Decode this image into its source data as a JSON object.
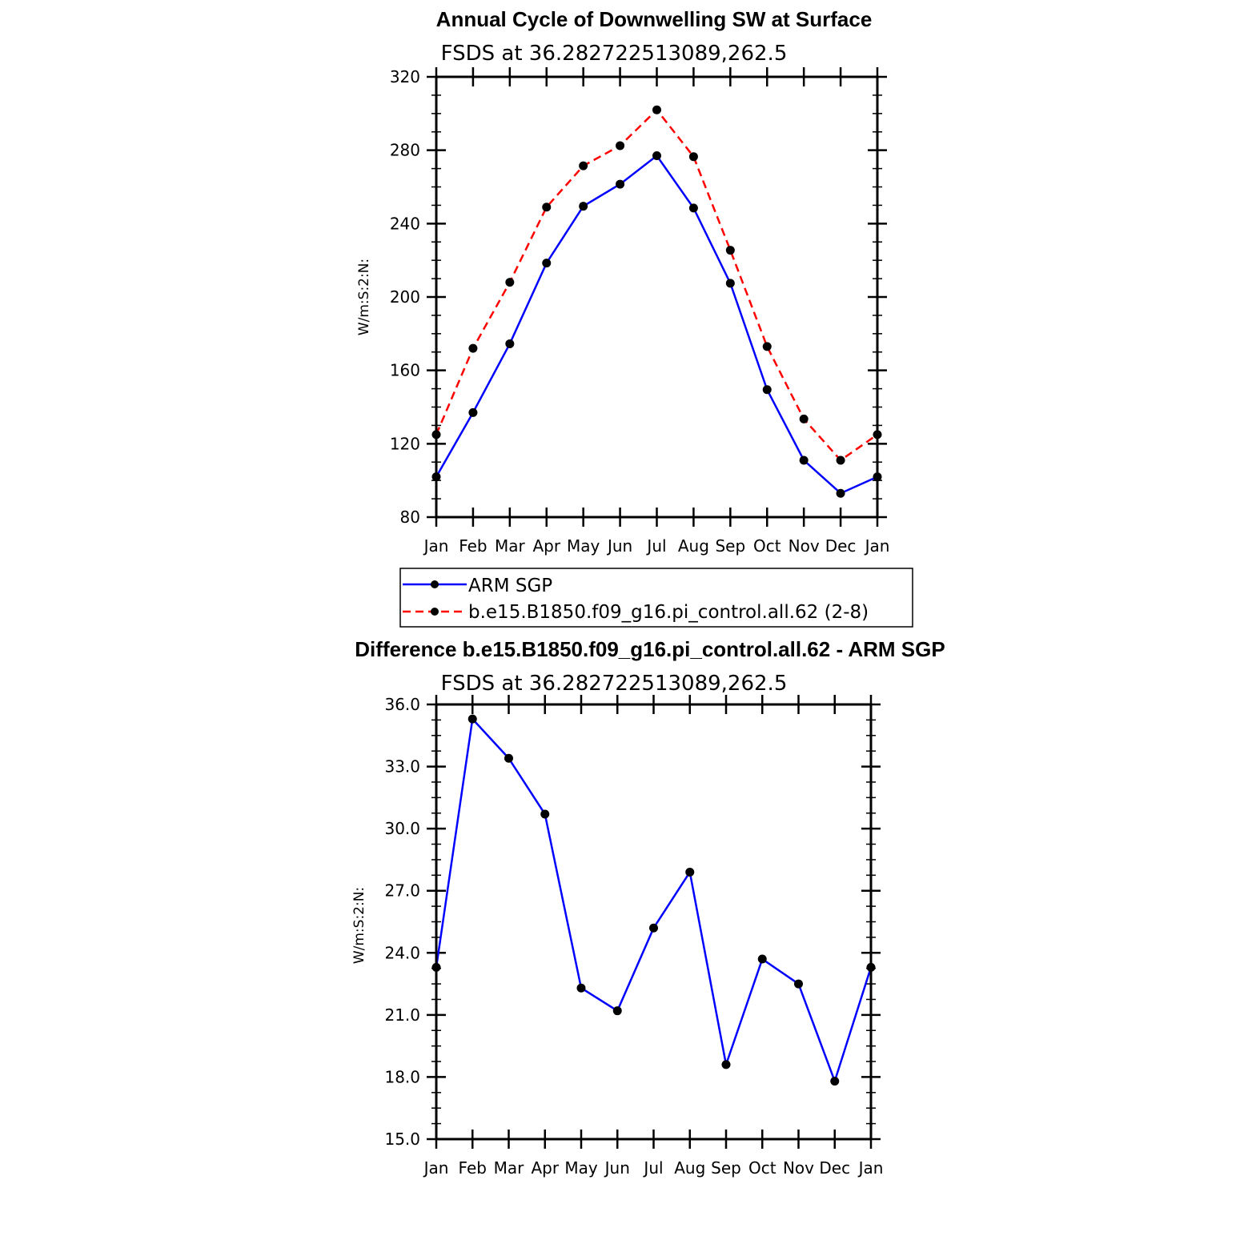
{
  "chart_data": [
    {
      "type": "line",
      "title": "Annual Cycle of Downwelling SW at Surface",
      "subtitle": "FSDS at 36.282722513089,262.5",
      "ylabel": "W/m:S:2:N:",
      "xlabel": "",
      "categories": [
        "Jan",
        "Feb",
        "Mar",
        "Apr",
        "May",
        "Jun",
        "Jul",
        "Aug",
        "Sep",
        "Oct",
        "Nov",
        "Dec",
        "Jan"
      ],
      "ylim": [
        80,
        320
      ],
      "yticks": [
        "80",
        "120",
        "160",
        "200",
        "240",
        "280",
        "320"
      ],
      "series": [
        {
          "name": "ARM SGP",
          "color": "#0000ff",
          "dash": "solid",
          "values": [
            102,
            137,
            174.5,
            218.5,
            249.5,
            261.5,
            277,
            248.5,
            207.5,
            149.5,
            111,
            93,
            102
          ]
        },
        {
          "name": "b.e15.B1850.f09_g16.pi_control.all.62 (2-8)",
          "color": "#ff0000",
          "dash": "dashed",
          "values": [
            125,
            172,
            208,
            249,
            271.5,
            282.5,
            302,
            276.5,
            225.5,
            173,
            133.5,
            111,
            125
          ]
        }
      ],
      "legend": "bottom"
    },
    {
      "type": "line",
      "title": "Difference b.e15.B1850.f09_g16.pi_control.all.62 - ARM SGP",
      "subtitle": "FSDS at 36.282722513089,262.5",
      "ylabel": "W/m:S:2:N:",
      "xlabel": "",
      "categories": [
        "Jan",
        "Feb",
        "Mar",
        "Apr",
        "May",
        "Jun",
        "Jul",
        "Aug",
        "Sep",
        "Oct",
        "Nov",
        "Dec",
        "Jan"
      ],
      "ylim": [
        15,
        36
      ],
      "yticks": [
        "15.0",
        "18.0",
        "21.0",
        "24.0",
        "27.0",
        "30.0",
        "33.0",
        "36.0"
      ],
      "series": [
        {
          "name": "Difference",
          "color": "#0000ff",
          "dash": "solid",
          "values": [
            23.3,
            35.3,
            33.4,
            30.7,
            22.3,
            21.2,
            25.2,
            27.9,
            18.6,
            23.7,
            22.5,
            17.8,
            23.3
          ]
        }
      ]
    }
  ]
}
